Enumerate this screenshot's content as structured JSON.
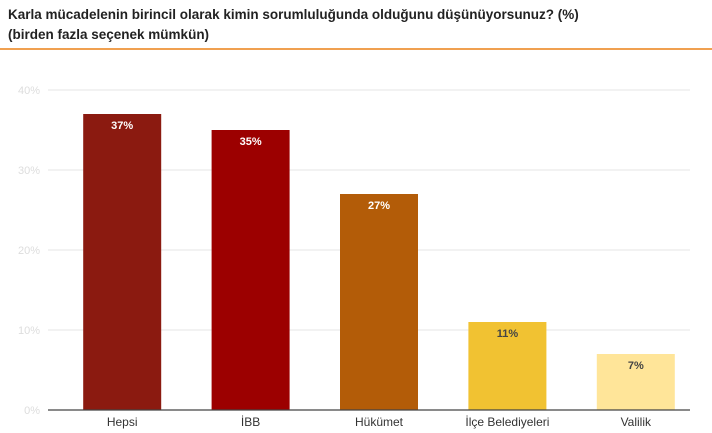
{
  "title_line1": "Karla mücadelenin birincil olarak kimin sorumluluğunda olduğunu düşünüyorsunuz? (%)",
  "title_line2": "(birden fazla seçenek mümkün)",
  "colors": {
    "title_rule": "#f0a050",
    "grid": "#e6e6e6",
    "axis": "#444444",
    "bars": [
      "#8b1a10",
      "#9c0000",
      "#b35c08",
      "#f1c232",
      "#ffe599"
    ],
    "data_label_light": "#ffffff",
    "data_label_dark": "#444444"
  },
  "chart_data": {
    "type": "bar",
    "categories": [
      "Hepsi",
      "İBB",
      "Hükümet",
      "İlçe Belediyeleri",
      "Valilik"
    ],
    "values": [
      37,
      35,
      27,
      11,
      7
    ],
    "data_labels": [
      "37%",
      "35%",
      "27%",
      "11%",
      "7%"
    ],
    "yticks": [
      0,
      10,
      20,
      30,
      40
    ],
    "ytick_labels": [
      "0%",
      "10%",
      "20%",
      "30%",
      "40%"
    ],
    "ylim": [
      0,
      40
    ],
    "grid": true,
    "legend": "none"
  }
}
